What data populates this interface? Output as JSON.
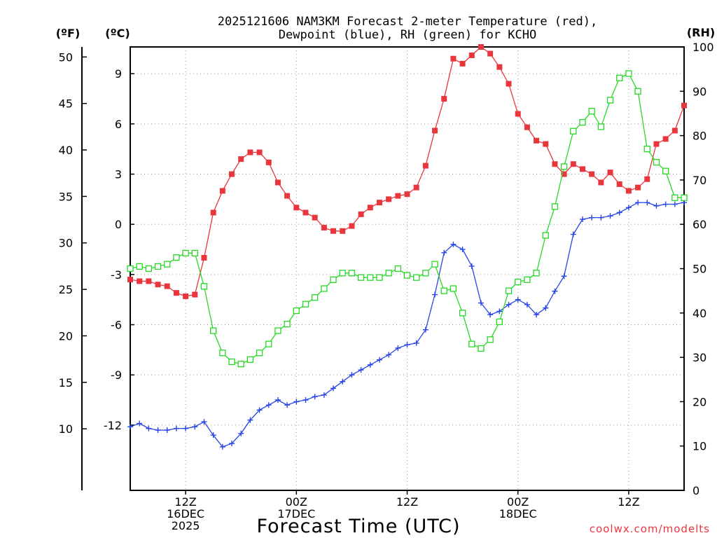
{
  "chart_data": {
    "type": "line",
    "title": "2025121606 NAM3KM Forecast 2-meter Temperature (red),",
    "subtitle": "Dewpoint (blue), RH (green) for KCHO",
    "xlabel": "Forecast Time (UTC)",
    "left_axis_f_label": "(ºF)",
    "left_axis_c_label": "(ºC)",
    "right_axis_label": "(RH)",
    "credit": "coolwx.com/modelts",
    "x_range_hours": [
      6,
      66
    ],
    "ylim_c": [
      -15.9,
      10.6
    ],
    "ylim_rh": [
      0,
      100
    ],
    "y_ticks_c": [
      "9",
      "6",
      "3",
      "0",
      "-3",
      "-6",
      "-9",
      "-12"
    ],
    "y_ticks_c_values": [
      9,
      6,
      3,
      0,
      -3,
      -6,
      -9,
      -12
    ],
    "y_ticks_f": [
      "50",
      "45",
      "40",
      "35",
      "30",
      "25",
      "20",
      "15",
      "10"
    ],
    "y_ticks_f_values": [
      50,
      45,
      40,
      35,
      30,
      25,
      20,
      15,
      10
    ],
    "y_ticks_rh": [
      "100",
      "90",
      "80",
      "70",
      "60",
      "50",
      "40",
      "30",
      "20",
      "10",
      "0"
    ],
    "y_ticks_rh_values": [
      100,
      90,
      80,
      70,
      60,
      50,
      40,
      30,
      20,
      10,
      0
    ],
    "x_ticks": [
      {
        "hour": 12,
        "lines": [
          "12Z",
          "16DEC",
          "2025"
        ]
      },
      {
        "hour": 24,
        "lines": [
          "00Z",
          "17DEC"
        ]
      },
      {
        "hour": 36,
        "lines": [
          "12Z"
        ]
      },
      {
        "hour": 48,
        "lines": [
          "00Z",
          "18DEC"
        ]
      },
      {
        "hour": 60,
        "lines": [
          "12Z"
        ]
      }
    ],
    "series": [
      {
        "name": "Temperature",
        "unit": "C",
        "color": "#e8363c",
        "marker": "filled-square",
        "x": [
          6,
          7,
          8,
          9,
          10,
          11,
          12,
          13,
          14,
          15,
          16,
          17,
          18,
          19,
          20,
          21,
          22,
          23,
          24,
          25,
          26,
          27,
          28,
          29,
          30,
          31,
          32,
          33,
          34,
          35,
          36,
          37,
          38,
          39,
          40,
          41,
          42,
          43,
          44,
          45,
          46,
          47,
          48,
          49,
          50,
          51,
          52,
          53,
          54,
          55,
          56,
          57,
          58,
          59,
          60,
          61,
          62,
          63,
          64,
          65,
          66
        ],
        "values": [
          -3.3,
          -3.4,
          -3.4,
          -3.6,
          -3.7,
          -4.1,
          -4.3,
          -4.2,
          -2.0,
          0.7,
          2.0,
          3.0,
          3.9,
          4.3,
          4.3,
          3.7,
          2.5,
          1.7,
          1.0,
          0.7,
          0.4,
          -0.2,
          -0.4,
          -0.4,
          -0.1,
          0.6,
          1.0,
          1.3,
          1.5,
          1.7,
          1.8,
          2.2,
          3.5,
          5.6,
          7.5,
          9.9,
          9.6,
          10.1,
          10.6,
          10.2,
          9.4,
          8.4,
          6.6,
          5.8,
          5.0,
          4.8,
          3.6,
          3.0,
          3.6,
          3.3,
          3.0,
          2.5,
          3.1,
          2.4,
          2.0,
          2.2,
          2.7,
          4.8,
          5.1,
          5.6,
          7.1
        ]
      },
      {
        "name": "Dewpoint",
        "unit": "C",
        "color": "#2845e8",
        "marker": "plus",
        "x": [
          6,
          7,
          8,
          9,
          10,
          11,
          12,
          13,
          14,
          15,
          16,
          17,
          18,
          19,
          20,
          21,
          22,
          23,
          24,
          25,
          26,
          27,
          28,
          29,
          30,
          31,
          32,
          33,
          34,
          35,
          36,
          37,
          38,
          39,
          40,
          41,
          42,
          43,
          44,
          45,
          46,
          47,
          48,
          49,
          50,
          51,
          52,
          53,
          54,
          55,
          56,
          57,
          58,
          59,
          60,
          61,
          62,
          63,
          64,
          65,
          66
        ],
        "values": [
          -12.1,
          -11.9,
          -12.2,
          -12.3,
          -12.3,
          -12.2,
          -12.2,
          -12.1,
          -11.8,
          -12.6,
          -13.3,
          -13.1,
          -12.5,
          -11.7,
          -11.1,
          -10.8,
          -10.5,
          -10.8,
          -10.6,
          -10.5,
          -10.3,
          -10.2,
          -9.8,
          -9.4,
          -9.0,
          -8.7,
          -8.4,
          -8.1,
          -7.8,
          -7.4,
          -7.2,
          -7.1,
          -6.3,
          -4.2,
          -1.7,
          -1.2,
          -1.5,
          -2.5,
          -4.7,
          -5.4,
          -5.2,
          -4.8,
          -4.5,
          -4.8,
          -5.4,
          -5.0,
          -4.0,
          -3.1,
          -0.6,
          0.3,
          0.4,
          0.4,
          0.5,
          0.7,
          1.0,
          1.3,
          1.3,
          1.1,
          1.2,
          1.2,
          1.3
        ]
      },
      {
        "name": "RH",
        "unit": "%",
        "color": "#26d826",
        "marker": "open-square",
        "x": [
          6,
          7,
          8,
          9,
          10,
          11,
          12,
          13,
          14,
          15,
          16,
          17,
          18,
          19,
          20,
          21,
          22,
          23,
          24,
          25,
          26,
          27,
          28,
          29,
          30,
          31,
          32,
          33,
          34,
          35,
          36,
          37,
          38,
          39,
          40,
          41,
          42,
          43,
          44,
          45,
          46,
          47,
          48,
          49,
          50,
          51,
          52,
          53,
          54,
          55,
          56,
          57,
          58,
          59,
          60,
          61,
          62,
          63,
          64,
          65,
          66
        ],
        "values": [
          50.0,
          50.5,
          50.0,
          50.5,
          51.0,
          52.5,
          53.5,
          53.5,
          46.0,
          36.0,
          31.0,
          29.0,
          28.5,
          29.5,
          31.0,
          33.0,
          36.0,
          37.5,
          40.5,
          42.0,
          43.5,
          45.5,
          47.5,
          49.0,
          49.0,
          48.0,
          48.0,
          48.0,
          49.0,
          50.0,
          48.5,
          48.0,
          49.0,
          51.0,
          45.0,
          45.5,
          40.0,
          33.0,
          32.0,
          34.0,
          38.0,
          45.0,
          47.0,
          47.5,
          49.0,
          57.5,
          64.0,
          73.0,
          81.0,
          83.0,
          85.5,
          82.0,
          88.0,
          93.0,
          94.0,
          90.0,
          77.0,
          74.0,
          72.0,
          66.0,
          66.0
        ]
      }
    ]
  }
}
